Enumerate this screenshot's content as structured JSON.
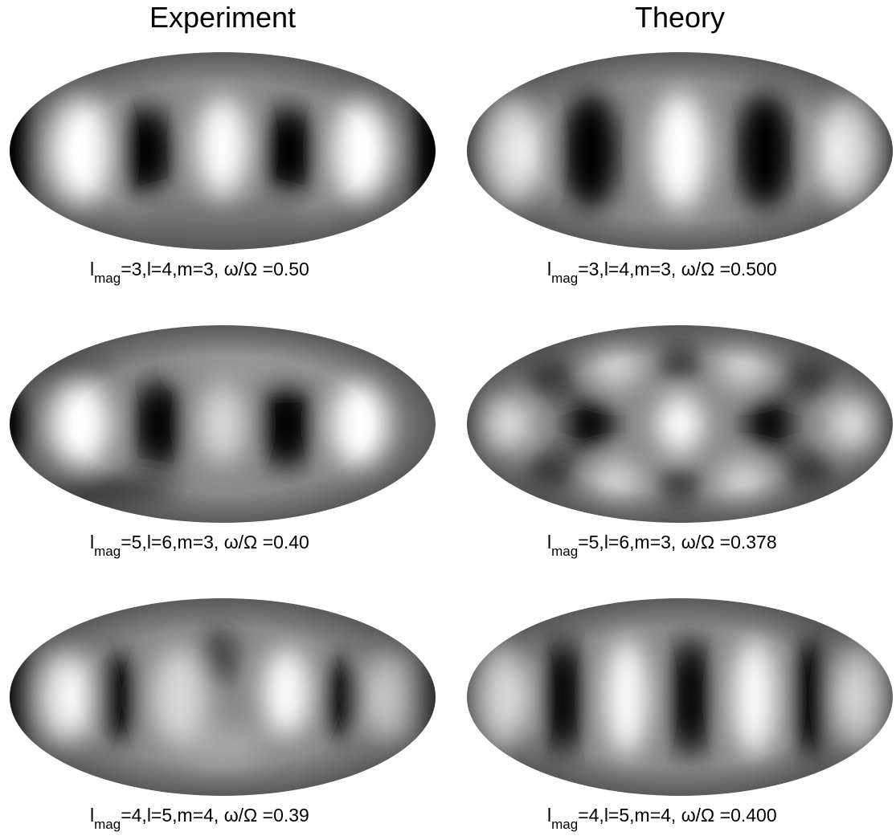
{
  "titles": [
    "Experiment",
    "Theory"
  ],
  "panels": [
    {
      "label": {
        "symbol": "l",
        "subscript": "mag",
        "text": "=3,l=4,m=3, ω/Ω =0.50"
      }
    },
    {
      "label": {
        "symbol": "l",
        "subscript": "mag",
        "text": "=3,l=4,m=3, ω/Ω =0.500"
      }
    },
    {
      "label": {
        "symbol": "l",
        "subscript": "mag",
        "text": "=5,l=6,m=3, ω/Ω =0.40"
      }
    },
    {
      "label": {
        "symbol": "l",
        "subscript": "mag",
        "text": "=5,l=6,m=3, ω/Ω =0.378"
      }
    },
    {
      "label": {
        "symbol": "l",
        "subscript": "mag",
        "text": "=4,l=5,m=4, ω/Ω =0.39"
      }
    },
    {
      "label": {
        "symbol": "l",
        "subscript": "mag",
        "text": "=4,l=5,m=4, ω/Ω =0.400"
      }
    }
  ]
}
